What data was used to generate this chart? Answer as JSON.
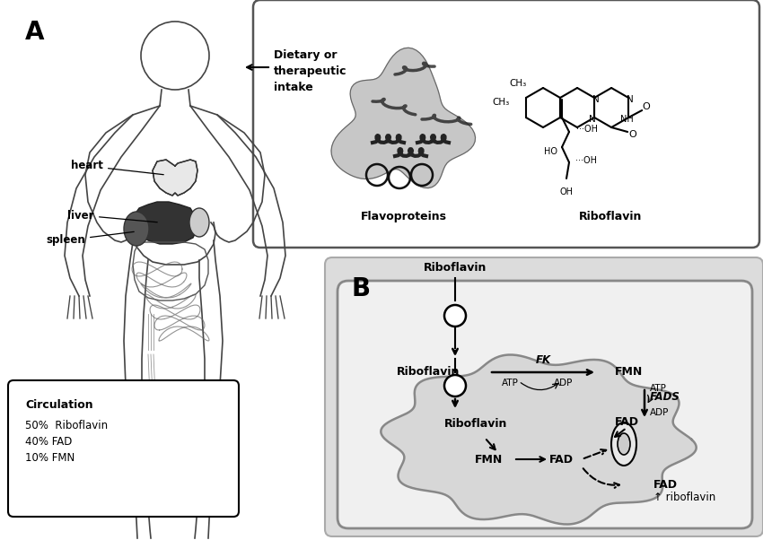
{
  "bg_color": "#ffffff",
  "panel_b_bg": "#dcdcdc",
  "panel_a_label": "A",
  "panel_b_label": "B",
  "label_fontsize": 20,
  "body_edge_color": "#444444",
  "body_lw": 1.2,
  "organ_edge_color": "#333333",
  "circulation_title": "Circulation",
  "circulation_lines": [
    "50%  Riboflavin",
    "40% FAD",
    "10% FMN"
  ],
  "dietary_label": "Dietary or\ntherapeutic\nintake",
  "flavoproteins_label": "Flavoproteins",
  "riboflavin_struct_label": "Riboflavin",
  "panel_b_riboflavin_top": "Riboflavin",
  "panel_b_riboflavin_cyto": "Riboflavin",
  "panel_b_riboflavin_mito": "Riboflavin",
  "panel_b_fmn_cyto": "FMN",
  "panel_b_fmn_mito": "FMN",
  "panel_b_fad_cyto": "FAD",
  "panel_b_fad_mito": "FAD",
  "panel_b_fad_outer": "FAD",
  "panel_b_fk": "FK",
  "panel_b_fads": "FADS",
  "panel_b_atp1": "ATP",
  "panel_b_adp1": "ADP",
  "panel_b_atp2": "ATP",
  "panel_b_adp2": "ADP",
  "panel_b_fad_ribo": "FAD",
  "panel_b_up_ribo": "↑ riboflavin"
}
